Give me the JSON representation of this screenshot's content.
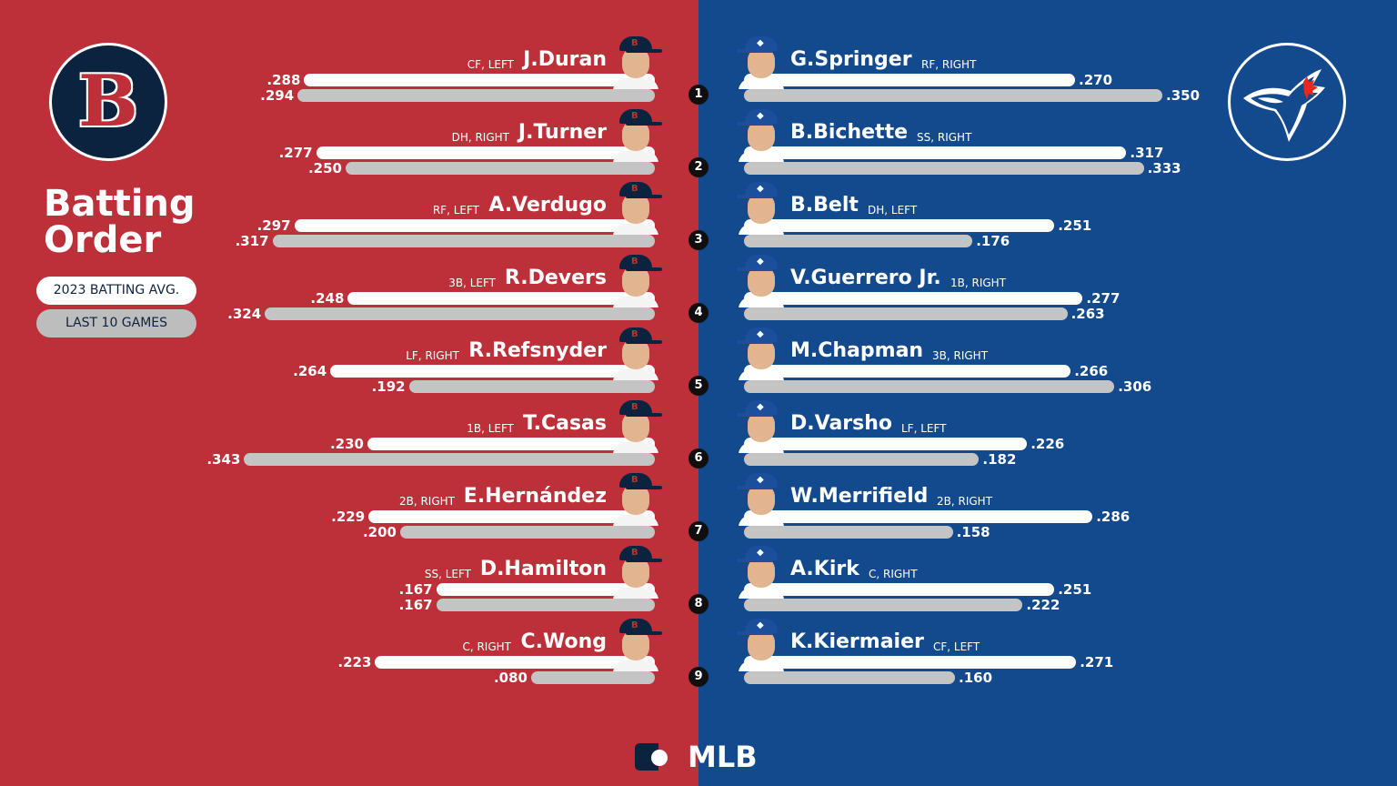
{
  "title": "Batting Order",
  "legend": {
    "season": "2023 BATTING AVG.",
    "last10": "LAST 10 GAMES"
  },
  "colors": {
    "red_sox_bg": "#bd3039",
    "blue_jays_bg": "#134a8e",
    "season_bar": "#ffffff",
    "last10_bar": "#c4c4c4"
  },
  "brand": "MLB",
  "chart_data": [
    {
      "type": "bar",
      "team": "Boston Red Sox",
      "logo_icon": "red-sox-b-logo-icon",
      "categories": [
        "1",
        "2",
        "3",
        "4",
        "5",
        "6",
        "7",
        "8",
        "9"
      ],
      "players": [
        {
          "order": "1",
          "name": "J.Duran",
          "position": "CF, LEFT",
          "season": ".288",
          "last10": ".294"
        },
        {
          "order": "2",
          "name": "J.Turner",
          "position": "DH, RIGHT",
          "season": ".277",
          "last10": ".250"
        },
        {
          "order": "3",
          "name": "A.Verdugo",
          "position": "RF, LEFT",
          "season": ".297",
          "last10": ".317"
        },
        {
          "order": "4",
          "name": "R.Devers",
          "position": "3B, LEFT",
          "season": ".248",
          "last10": ".324"
        },
        {
          "order": "5",
          "name": "R.Refsnyder",
          "position": "LF, RIGHT",
          "season": ".264",
          "last10": ".192"
        },
        {
          "order": "6",
          "name": "T.Casas",
          "position": "1B, LEFT",
          "season": ".230",
          "last10": ".343"
        },
        {
          "order": "7",
          "name": "E.Hernández",
          "position": "2B, RIGHT",
          "season": ".229",
          "last10": ".200"
        },
        {
          "order": "8",
          "name": "D.Hamilton",
          "position": "SS, LEFT",
          "season": ".167",
          "last10": ".167"
        },
        {
          "order": "9",
          "name": "C.Wong",
          "position": "C, RIGHT",
          "season": ".223",
          "last10": ".080"
        }
      ],
      "series": [
        {
          "name": "2023 BATTING AVG.",
          "values": [
            0.288,
            0.277,
            0.297,
            0.248,
            0.264,
            0.23,
            0.229,
            0.167,
            0.223
          ]
        },
        {
          "name": "LAST 10 GAMES",
          "values": [
            0.294,
            0.25,
            0.317,
            0.324,
            0.192,
            0.343,
            0.2,
            0.167,
            0.08
          ]
        }
      ]
    },
    {
      "type": "bar",
      "team": "Toronto Blue Jays",
      "logo_icon": "blue-jays-logo-icon",
      "categories": [
        "1",
        "2",
        "3",
        "4",
        "5",
        "6",
        "7",
        "8",
        "9"
      ],
      "players": [
        {
          "order": "1",
          "name": "G.Springer",
          "position": "RF, RIGHT",
          "season": ".270",
          "last10": ".350"
        },
        {
          "order": "2",
          "name": "B.Bichette",
          "position": "SS, RIGHT",
          "season": ".317",
          "last10": ".333"
        },
        {
          "order": "3",
          "name": "B.Belt",
          "position": "DH, LEFT",
          "season": ".251",
          "last10": ".176"
        },
        {
          "order": "4",
          "name": "V.Guerrero Jr.",
          "position": "1B, RIGHT",
          "season": ".277",
          "last10": ".263"
        },
        {
          "order": "5",
          "name": "M.Chapman",
          "position": "3B, RIGHT",
          "season": ".266",
          "last10": ".306"
        },
        {
          "order": "6",
          "name": "D.Varsho",
          "position": "LF, LEFT",
          "season": ".226",
          "last10": ".182"
        },
        {
          "order": "7",
          "name": "W.Merrifield",
          "position": "2B, RIGHT",
          "season": ".286",
          "last10": ".158"
        },
        {
          "order": "8",
          "name": "A.Kirk",
          "position": "C, RIGHT",
          "season": ".251",
          "last10": ".222"
        },
        {
          "order": "9",
          "name": "K.Kiermaier",
          "position": "CF, LEFT",
          "season": ".271",
          "last10": ".160"
        }
      ],
      "series": [
        {
          "name": "2023 BATTING AVG.",
          "values": [
            0.27,
            0.317,
            0.251,
            0.277,
            0.266,
            0.226,
            0.286,
            0.251,
            0.271
          ]
        },
        {
          "name": "LAST 10 GAMES",
          "values": [
            0.35,
            0.333,
            0.176,
            0.263,
            0.306,
            0.182,
            0.158,
            0.222,
            0.16
          ]
        }
      ]
    }
  ]
}
